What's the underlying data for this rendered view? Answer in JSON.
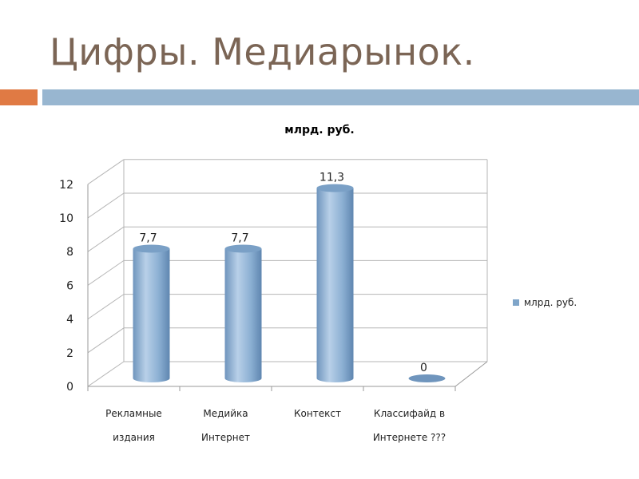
{
  "slide": {
    "title": "Цифры. Медиарынок."
  },
  "colors": {
    "title_text": "#7b6555",
    "band_accent": "#e07a44",
    "band_main": "#98b6d0",
    "bar": "#8cb0d3"
  },
  "chart_data": {
    "type": "bar",
    "style": "3d-cylinder",
    "title": "млрд. руб.",
    "categories": [
      [
        "Рекламные",
        "издания"
      ],
      [
        "Медийка",
        "Интернет"
      ],
      [
        "Контекст"
      ],
      [
        "Классифайд в",
        "Интернете ???"
      ]
    ],
    "series": [
      {
        "name": "млрд. руб.",
        "values": [
          7.7,
          7.7,
          11.3,
          0
        ],
        "labels": [
          "7,7",
          "7,7",
          "11,3",
          "0"
        ]
      }
    ],
    "y_ticks": [
      "0",
      "2",
      "4",
      "6",
      "8",
      "10",
      "12"
    ],
    "ylim": [
      0,
      12
    ],
    "grid": true,
    "legend_position": "right"
  }
}
